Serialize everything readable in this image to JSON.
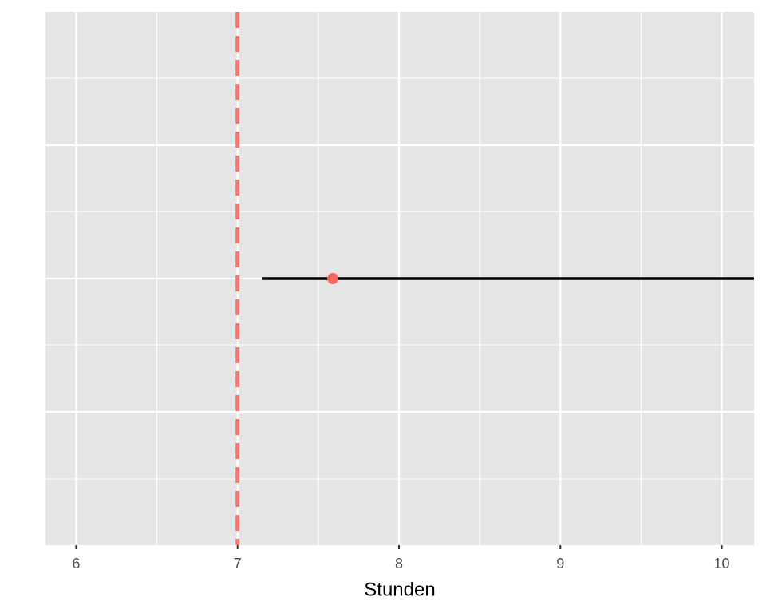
{
  "chart_data": {
    "type": "pointrange",
    "x_label": "Stunden",
    "xlim": [
      5.81,
      10.2
    ],
    "xticks": [
      6,
      7,
      8,
      9,
      10
    ],
    "grid": true,
    "estimate": 7.59,
    "interval": [
      7.15,
      10.2
    ],
    "color": "#f46a62",
    "interval_color": "#000000",
    "reference_line": 7,
    "reference_color": "#f8766d"
  }
}
